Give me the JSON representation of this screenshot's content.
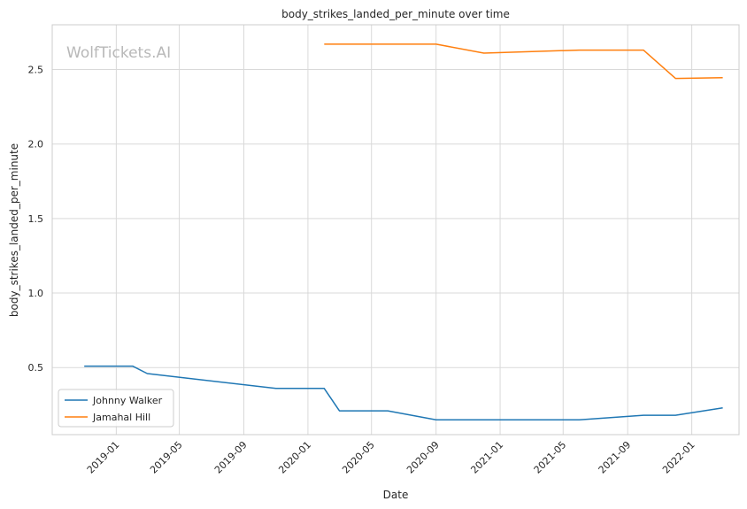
{
  "chart_data": {
    "type": "line",
    "title": "body_strikes_landed_per_minute over time",
    "xlabel": "Date",
    "ylabel": "body_strikes_landed_per_minute",
    "watermark": "WolfTickets.AI",
    "x_type": "date",
    "xlim": [
      "2018-09-01",
      "2022-04-01"
    ],
    "ylim": [
      0.05,
      2.8
    ],
    "x_ticks": [
      "2019-01",
      "2019-05",
      "2019-09",
      "2020-01",
      "2020-05",
      "2020-09",
      "2021-01",
      "2021-05",
      "2021-09",
      "2022-01"
    ],
    "y_ticks": [
      0.5,
      1.0,
      1.5,
      2.0,
      2.5
    ],
    "y_tick_labels": [
      "0.5",
      "1.0",
      "1.5",
      "2.0",
      "2.5"
    ],
    "grid": true,
    "legend_position": "bottom-left",
    "series": [
      {
        "name": "Johnny Walker",
        "color": "#1f77b4",
        "x": [
          "2018-11-01",
          "2019-02-01",
          "2019-03-01",
          "2019-11-01",
          "2020-02-01",
          "2020-03-01",
          "2020-06-01",
          "2020-09-01",
          "2021-06-01",
          "2021-10-01",
          "2021-12-01",
          "2022-03-01"
        ],
        "y": [
          0.51,
          0.51,
          0.46,
          0.36,
          0.36,
          0.21,
          0.21,
          0.15,
          0.15,
          0.18,
          0.18,
          0.23
        ]
      },
      {
        "name": "Jamahal Hill",
        "color": "#ff7f0e",
        "x": [
          "2020-02-01",
          "2020-09-01",
          "2020-12-01",
          "2021-06-01",
          "2021-10-01",
          "2021-12-01",
          "2022-03-01"
        ],
        "y": [
          2.67,
          2.67,
          2.61,
          2.63,
          2.63,
          2.44,
          2.445
        ]
      }
    ]
  }
}
